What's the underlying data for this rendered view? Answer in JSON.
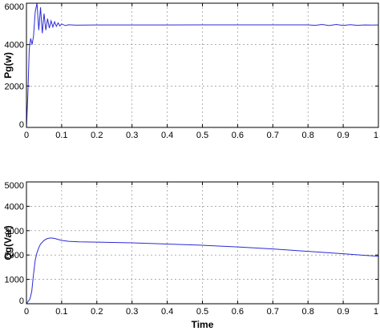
{
  "chart_data": [
    {
      "type": "line",
      "title": "",
      "xlabel": "",
      "ylabel": "Pg(w)",
      "xlim": [
        0,
        1
      ],
      "ylim": [
        0,
        6000
      ],
      "xticks": [
        "0",
        "0.1",
        "0.2",
        "0.3",
        "0.4",
        "0.5",
        "0.6",
        "0.7",
        "0.8",
        "0.9",
        "1"
      ],
      "yticks": [
        "0",
        "2000",
        "4000",
        "6000"
      ],
      "grid": true,
      "series": [
        {
          "color": "#2b2bd6",
          "x": [
            0,
            0.004,
            0.008,
            0.012,
            0.016,
            0.02,
            0.025,
            0.03,
            0.035,
            0.04,
            0.045,
            0.05,
            0.055,
            0.06,
            0.065,
            0.07,
            0.075,
            0.08,
            0.085,
            0.09,
            0.095,
            0.1,
            0.11,
            0.12,
            0.14,
            0.2,
            0.3,
            0.4,
            0.5,
            0.6,
            0.7,
            0.8,
            0.82,
            0.84,
            0.86,
            0.88,
            0.9,
            0.92,
            0.94,
            0.96,
            0.98,
            1.0
          ],
          "y": [
            0,
            1600,
            3800,
            4300,
            4000,
            4400,
            5600,
            6000,
            4700,
            5800,
            4550,
            5500,
            4700,
            5250,
            4800,
            5150,
            4850,
            5100,
            4880,
            5050,
            4900,
            5000,
            4920,
            4960,
            4940,
            4950,
            4950,
            4950,
            4955,
            4955,
            4955,
            4955,
            4930,
            4975,
            4920,
            4975,
            4925,
            4965,
            4930,
            4950,
            4945,
            4950
          ]
        }
      ]
    },
    {
      "type": "line",
      "title": "",
      "xlabel": "Time",
      "ylabel": "Qg(Var)",
      "xlim": [
        0,
        1
      ],
      "ylim": [
        0,
        5000
      ],
      "xticks": [
        "0",
        "0.1",
        "0.2",
        "0.3",
        "0.4",
        "0.5",
        "0.6",
        "0.7",
        "0.8",
        "0.9",
        "1"
      ],
      "yticks": [
        "0",
        "1000",
        "2000",
        "3000",
        "4000",
        "5000"
      ],
      "grid": true,
      "series": [
        {
          "color": "#2b2bd6",
          "x": [
            0,
            0.005,
            0.01,
            0.015,
            0.02,
            0.025,
            0.03,
            0.035,
            0.04,
            0.05,
            0.06,
            0.07,
            0.08,
            0.09,
            0.1,
            0.12,
            0.15,
            0.2,
            0.3,
            0.4,
            0.5,
            0.6,
            0.7,
            0.8,
            0.9,
            0.95,
            1.0
          ],
          "y": [
            0,
            100,
            200,
            500,
            1200,
            1800,
            2100,
            2300,
            2450,
            2600,
            2680,
            2700,
            2680,
            2640,
            2600,
            2560,
            2540,
            2530,
            2500,
            2450,
            2400,
            2330,
            2250,
            2150,
            2050,
            2000,
            1950
          ]
        }
      ]
    }
  ]
}
